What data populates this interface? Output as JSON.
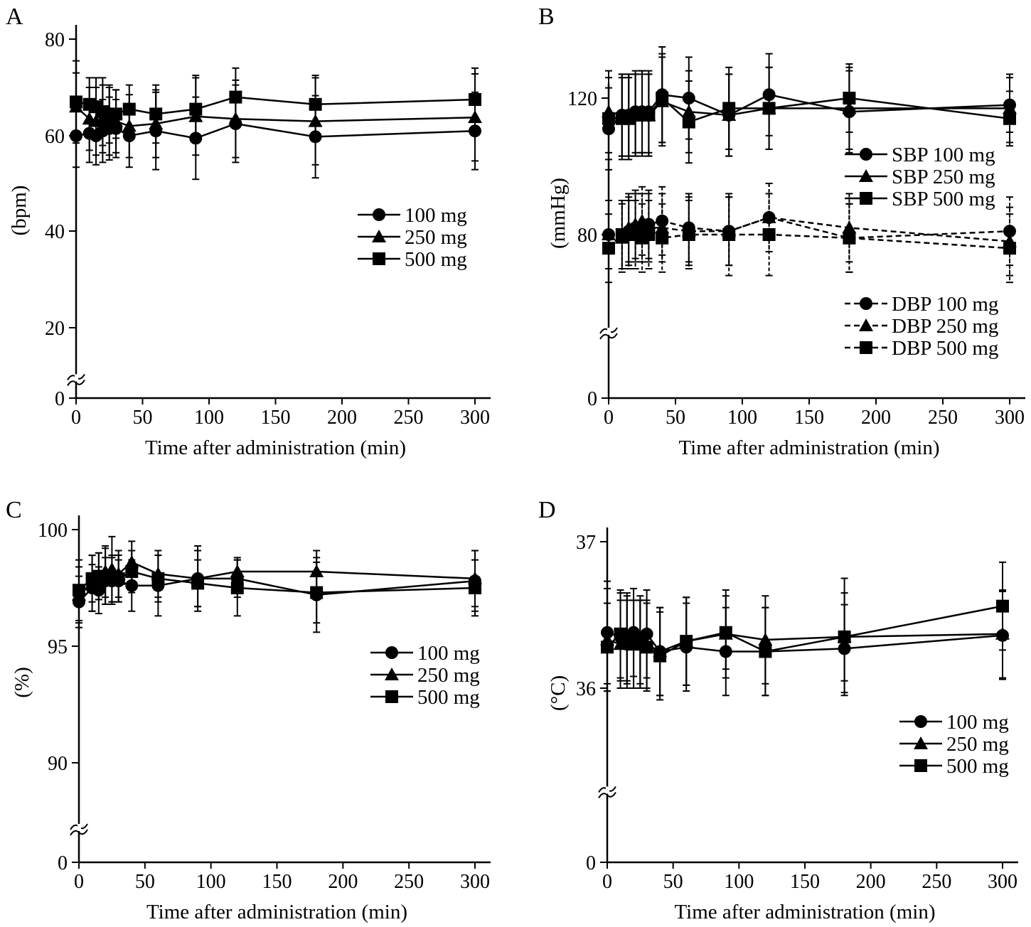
{
  "x_axis_label": "Time after administration (min)",
  "chart_data": [
    {
      "panel": "A",
      "type": "line",
      "ylabel": "(bpm)",
      "xlabel": "Time after administration (min)",
      "xlim": [
        0,
        300
      ],
      "x_ticks": [
        0,
        50,
        100,
        150,
        200,
        250,
        300
      ],
      "ylim": [
        0,
        80
      ],
      "y_ticks": [
        0,
        20,
        40,
        60,
        80
      ],
      "axis_break_between": [
        0,
        20
      ],
      "legend_position": "right-middle",
      "x": [
        0,
        10,
        15,
        20,
        25,
        30,
        40,
        60,
        90,
        120,
        180,
        300
      ],
      "series": [
        {
          "name": "100 mg",
          "marker": "circle",
          "dash": false,
          "values": [
            60.0,
            60.5,
            60.0,
            61.0,
            61.5,
            61.5,
            60.0,
            61.0,
            59.5,
            62.5,
            59.8,
            61.0
          ],
          "errors": [
            6.5,
            6.0,
            6.0,
            6.5,
            6.5,
            6.0,
            6.5,
            8.0,
            8.5,
            8.0,
            8.5,
            8.0
          ]
        },
        {
          "name": "250 mg",
          "marker": "triangle",
          "dash": false,
          "values": [
            66.0,
            63.5,
            63.0,
            63.5,
            63.0,
            63.0,
            62.0,
            62.5,
            64.0,
            63.5,
            63.0,
            63.8
          ],
          "errors": [
            7.0,
            6.5,
            7.0,
            7.0,
            7.0,
            6.5,
            6.5,
            7.0,
            8.0,
            8.0,
            9.0,
            9.0
          ]
        },
        {
          "name": "500 mg",
          "marker": "square",
          "dash": false,
          "values": [
            67.0,
            66.5,
            66.0,
            65.0,
            64.5,
            64.5,
            65.5,
            64.5,
            65.5,
            68.0,
            66.5,
            67.5
          ],
          "errors": [
            8.5,
            5.5,
            6.0,
            7.0,
            6.0,
            5.0,
            5.0,
            6.0,
            7.0,
            6.0,
            6.0,
            6.5
          ]
        }
      ]
    },
    {
      "panel": "B",
      "type": "line",
      "ylabel": "(mmHg)",
      "xlabel": "Time after administration (min)",
      "xlim": [
        0,
        300
      ],
      "x_ticks": [
        0,
        50,
        100,
        150,
        200,
        250,
        300
      ],
      "ylim": [
        0,
        120
      ],
      "y_ticks": [
        0,
        80,
        120
      ],
      "axis_break_between": [
        0,
        80
      ],
      "legend_position": "right",
      "x": [
        0,
        10,
        15,
        20,
        25,
        30,
        40,
        60,
        90,
        120,
        180,
        300
      ],
      "series": [
        {
          "name": "SBP 100 mg",
          "marker": "circle",
          "dash": false,
          "values": [
            111,
            115,
            115,
            116,
            116,
            116,
            121,
            120,
            115,
            121,
            116,
            118
          ],
          "errors": [
            12,
            12,
            12,
            12,
            12,
            12,
            14,
            12,
            12,
            12,
            12,
            8
          ]
        },
        {
          "name": "SBP 250 mg",
          "marker": "triangle",
          "dash": false,
          "values": [
            116,
            115,
            115,
            115,
            116,
            115,
            119,
            116,
            115,
            117,
            117,
            117
          ],
          "errors": [
            12,
            12,
            12,
            12,
            12,
            12,
            13,
            12,
            12,
            12,
            12,
            10
          ]
        },
        {
          "name": "SBP 500 mg",
          "marker": "square",
          "dash": false,
          "values": [
            114,
            114,
            114,
            115,
            115,
            115,
            120,
            113,
            117,
            117,
            120,
            114
          ],
          "errors": [
            12,
            12,
            12,
            12,
            12,
            12,
            13,
            12,
            12,
            12,
            10,
            8
          ]
        },
        {
          "name": "DBP 100 mg",
          "marker": "circle",
          "dash": true,
          "values": [
            80,
            80,
            81,
            82,
            82,
            83,
            84,
            82,
            81,
            85,
            79,
            81
          ],
          "errors": [
            10,
            10,
            10,
            10,
            10,
            10,
            10,
            10,
            10,
            10,
            10,
            10
          ]
        },
        {
          "name": "DBP 250 mg",
          "marker": "triangle",
          "dash": true,
          "values": [
            80,
            79,
            82,
            83,
            84,
            82,
            82,
            81,
            81,
            85,
            82,
            78
          ],
          "errors": [
            10,
            10,
            10,
            10,
            10,
            10,
            10,
            10,
            10,
            10,
            10,
            10
          ]
        },
        {
          "name": "DBP 500 mg",
          "marker": "square",
          "dash": true,
          "values": [
            76,
            80,
            80,
            80,
            79,
            80,
            79,
            80,
            80,
            80,
            79,
            76
          ],
          "errors": [
            10,
            10,
            10,
            10,
            10,
            10,
            10,
            10,
            12,
            12,
            10,
            10
          ]
        }
      ]
    },
    {
      "panel": "C",
      "type": "line",
      "ylabel": "(%)",
      "xlabel": "Time after administration (min)",
      "xlim": [
        0,
        300
      ],
      "x_ticks": [
        0,
        50,
        100,
        150,
        200,
        250,
        300
      ],
      "ylim": [
        0,
        100
      ],
      "y_ticks": [
        0,
        90,
        95,
        100
      ],
      "axis_break_between": [
        0,
        90
      ],
      "legend_position": "right-middle",
      "x": [
        0,
        10,
        15,
        20,
        25,
        30,
        40,
        60,
        90,
        120,
        180,
        300
      ],
      "series": [
        {
          "name": "100 mg",
          "marker": "circle",
          "dash": false,
          "values": [
            96.9,
            97.5,
            97.4,
            97.8,
            97.8,
            97.8,
            97.6,
            97.6,
            97.9,
            97.9,
            97.2,
            97.8
          ],
          "errors": [
            1.1,
            1.0,
            1.0,
            1.0,
            1.0,
            0.9,
            1.1,
            1.3,
            1.4,
            0.8,
            1.6,
            1.3
          ]
        },
        {
          "name": "250 mg",
          "marker": "triangle",
          "dash": false,
          "values": [
            97.2,
            97.7,
            98.0,
            98.2,
            98.3,
            98.1,
            98.6,
            98.1,
            97.9,
            98.2,
            98.2,
            97.9
          ],
          "errors": [
            1.2,
            1.2,
            1.0,
            1.1,
            1.4,
            1.0,
            0.9,
            1.0,
            1.2,
            0.6,
            0.9,
            1.2
          ]
        },
        {
          "name": "500 mg",
          "marker": "square",
          "dash": false,
          "values": [
            97.4,
            97.9,
            98.0,
            98.0,
            97.9,
            97.9,
            98.2,
            97.9,
            97.7,
            97.5,
            97.3,
            97.5
          ],
          "errors": [
            1.3,
            1.0,
            1.0,
            1.2,
            1.0,
            1.0,
            0.9,
            1.0,
            1.0,
            1.2,
            1.3,
            1.2
          ]
        }
      ]
    },
    {
      "panel": "D",
      "type": "line",
      "ylabel": "(°C)",
      "xlabel": "Time after administration (min)",
      "xlim": [
        0,
        300
      ],
      "x_ticks": [
        0,
        50,
        100,
        150,
        200,
        250,
        300
      ],
      "ylim": [
        0,
        37
      ],
      "y_ticks": [
        0,
        36,
        37
      ],
      "axis_break_between": [
        0,
        36
      ],
      "legend_position": "bottom-right",
      "x": [
        0,
        10,
        15,
        20,
        25,
        30,
        40,
        60,
        90,
        120,
        180,
        300
      ],
      "series": [
        {
          "name": "100 mg",
          "marker": "circle",
          "dash": false,
          "values": [
            36.38,
            36.35,
            36.3,
            36.38,
            36.3,
            36.37,
            36.25,
            36.28,
            36.25,
            36.25,
            36.27,
            36.36
          ],
          "errors": [
            0.35,
            0.3,
            0.3,
            0.3,
            0.3,
            0.3,
            0.3,
            0.3,
            0.3,
            0.3,
            0.3,
            0.3
          ]
        },
        {
          "name": "250 mg",
          "marker": "triangle",
          "dash": false,
          "values": [
            36.33,
            36.3,
            36.35,
            36.3,
            36.3,
            36.3,
            36.25,
            36.32,
            36.37,
            36.33,
            36.35,
            36.37
          ],
          "errors": [
            0.35,
            0.3,
            0.3,
            0.3,
            0.3,
            0.3,
            0.3,
            0.3,
            0.3,
            0.3,
            0.3,
            0.3
          ]
        },
        {
          "name": "500 mg",
          "marker": "square",
          "dash": false,
          "values": [
            36.28,
            36.37,
            36.33,
            36.3,
            36.33,
            36.28,
            36.22,
            36.32,
            36.38,
            36.25,
            36.35,
            36.56
          ],
          "errors": [
            0.3,
            0.3,
            0.3,
            0.3,
            0.3,
            0.3,
            0.3,
            0.3,
            0.25,
            0.3,
            0.4,
            0.3
          ]
        }
      ]
    }
  ]
}
